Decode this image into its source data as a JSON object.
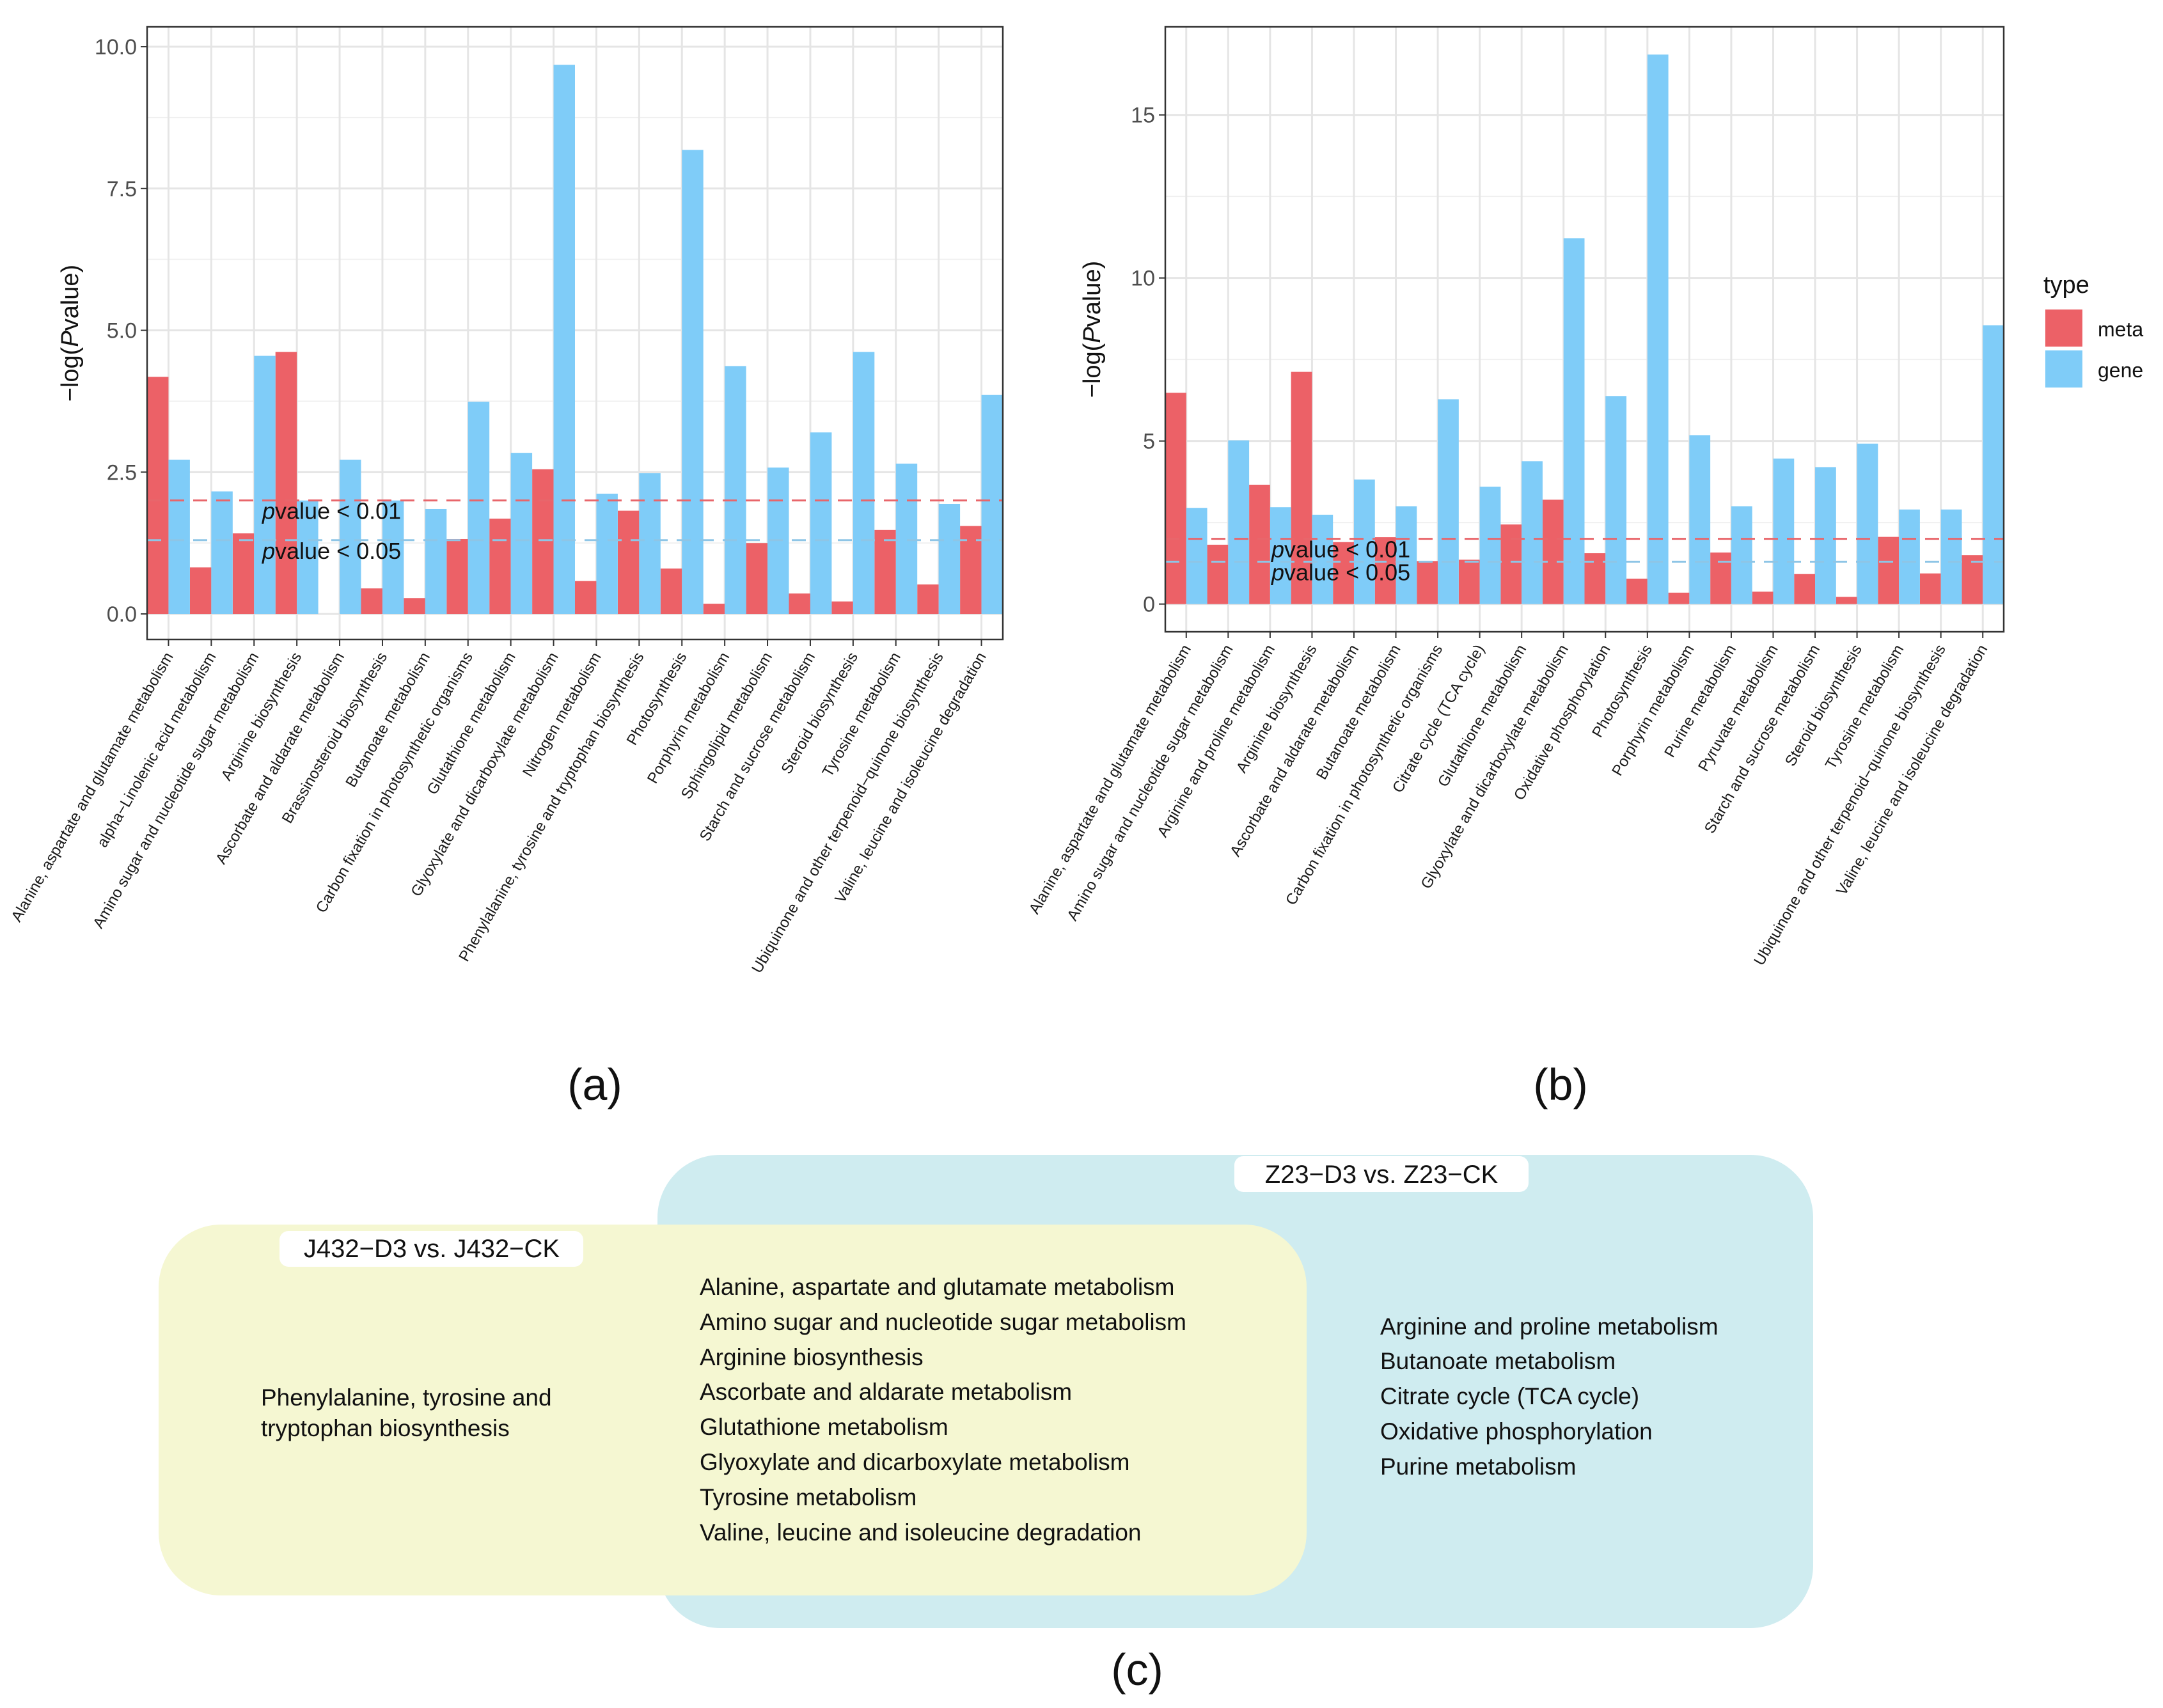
{
  "chart_data": [
    {
      "panel": "(a)",
      "type": "bar",
      "ylabel": "-log(Pvalue)",
      "ylabel_prefix": "−log(",
      "ylabel_italic": "P",
      "ylabel_suffix": "value)",
      "ylim": [
        -0.45,
        10.35
      ],
      "yticks": [
        0.0,
        2.5,
        5.0,
        7.5,
        10.0
      ],
      "ytick_labels": [
        "0.0",
        "2.5",
        "5.0",
        "7.5",
        "10.0"
      ],
      "grid": true,
      "thresholds": [
        {
          "value": 2.0,
          "color": "#e8666b",
          "dash": true,
          "label_italic": "p",
          "label_rest": "value < 0.01"
        },
        {
          "value": 1.3,
          "color": "#8ec5e6",
          "dash": true,
          "label_italic": "p",
          "label_rest": "value < 0.05"
        }
      ],
      "categories": [
        "Alanine, aspartate and glutamate metabolism",
        "alpha−Linolenic acid metabolism",
        "Amino sugar and nucleotide sugar metabolism",
        "Arginine biosynthesis",
        "Ascorbate and aldarate metabolism",
        "Brassinosteroid biosynthesis",
        "Butanoate metabolism",
        "Carbon fixation in photosynthetic organisms",
        "Glutathione metabolism",
        "Glyoxylate and dicarboxylate metabolism",
        "Nitrogen metabolism",
        "Phenylalanine, tyrosine and tryptophan biosynthesis",
        "Photosynthesis",
        "Porphyrin metabolism",
        "Sphingolipid metabolism",
        "Starch and sucrose metabolism",
        "Steroid biosynthesis",
        "Tyrosine metabolism",
        "Ubiquinone and other terpenoid−quinone biosynthesis",
        "Valine, leucine and isoleucine degradation"
      ],
      "series": [
        {
          "name": "meta",
          "color": "#ec6167",
          "values": [
            4.18,
            0.82,
            1.42,
            4.62,
            0.0,
            0.45,
            0.28,
            1.32,
            1.68,
            2.55,
            0.58,
            1.82,
            0.8,
            0.18,
            1.25,
            0.36,
            0.22,
            1.48,
            0.52,
            1.55
          ]
        },
        {
          "name": "gene",
          "color": "#7fccf8",
          "values": [
            2.72,
            2.16,
            4.55,
            2.0,
            2.72,
            2.0,
            1.85,
            3.74,
            2.84,
            9.68,
            2.12,
            2.48,
            8.18,
            4.37,
            2.58,
            3.2,
            4.62,
            2.65,
            1.94,
            3.86
          ]
        }
      ]
    },
    {
      "panel": "(b)",
      "type": "bar",
      "ylabel": "-log(Pvalue)",
      "ylabel_prefix": "−log(",
      "ylabel_italic": "P",
      "ylabel_suffix": "value)",
      "ylim": [
        -0.85,
        17.7
      ],
      "yticks": [
        0,
        5,
        10,
        15
      ],
      "ytick_labels": [
        "0",
        "5",
        "10",
        "15"
      ],
      "grid": true,
      "thresholds": [
        {
          "value": 2.0,
          "color": "#e8666b",
          "dash": true,
          "label_italic": "p",
          "label_rest": "value < 0.01"
        },
        {
          "value": 1.3,
          "color": "#8ec5e6",
          "dash": true,
          "label_italic": "p",
          "label_rest": "value < 0.05"
        }
      ],
      "categories": [
        "Alanine, aspartate and glutamate metabolism",
        "Amino sugar and nucleotide sugar metabolism",
        "Arginine and proline metabolism",
        "Arginine biosynthesis",
        "Ascorbate and aldarate metabolism",
        "Butanoate metabolism",
        "Carbon fixation in photosynthetic organisms",
        "Citrate cycle (TCA cycle)",
        "Glutathione metabolism",
        "Glyoxylate and dicarboxylate metabolism",
        "Oxidative phosphorylation",
        "Photosynthesis",
        "Porphyrin metabolism",
        "Purine metabolism",
        "Pyruvate metabolism",
        "Starch and sucrose metabolism",
        "Steroid biosynthesis",
        "Tyrosine metabolism",
        "Ubiquinone and other terpenoid−quinone biosynthesis",
        "Valine, leucine and isoleucine degradation"
      ],
      "series": [
        {
          "name": "meta",
          "color": "#ec6167",
          "values": [
            6.48,
            1.82,
            3.66,
            7.12,
            1.9,
            2.05,
            1.32,
            1.36,
            2.44,
            3.2,
            1.56,
            0.78,
            0.35,
            1.58,
            0.38,
            0.92,
            0.22,
            2.06,
            0.94,
            1.5
          ]
        },
        {
          "name": "gene",
          "color": "#7fccf8",
          "values": [
            2.95,
            5.02,
            2.97,
            2.74,
            3.82,
            3.0,
            6.28,
            3.6,
            4.38,
            11.22,
            6.38,
            16.85,
            5.18,
            3.0,
            4.46,
            4.2,
            4.92,
            2.9,
            2.9,
            8.55
          ]
        }
      ]
    }
  ],
  "legend": {
    "title": "type",
    "placement": "right",
    "entries": [
      {
        "label": "meta",
        "color": "#ec6167"
      },
      {
        "label": "gene",
        "color": "#7fccf8"
      }
    ]
  },
  "captions": {
    "a": "(a)",
    "b": "(b)",
    "c": "(c)"
  },
  "venn": {
    "left_title": "J432−D3 vs. J432−CK",
    "left_color": "#f5f7d2",
    "right_title": "Z23−D3 vs. Z23−CK",
    "right_color": "#cfecf0",
    "left_only": [
      "Phenylalanine, tyrosine and",
      "tryptophan biosynthesis"
    ],
    "shared": [
      "Alanine, aspartate and glutamate metabolism",
      "Amino sugar and nucleotide sugar metabolism",
      "Arginine biosynthesis",
      "Ascorbate and aldarate metabolism",
      "Glutathione metabolism",
      "Glyoxylate and dicarboxylate metabolism",
      "Tyrosine metabolism",
      "Valine, leucine and isoleucine degradation"
    ],
    "right_only": [
      "Arginine and proline metabolism",
      "Butanoate metabolism",
      "Citrate cycle (TCA cycle)",
      "Oxidative phosphorylation",
      "Purine metabolism"
    ]
  }
}
